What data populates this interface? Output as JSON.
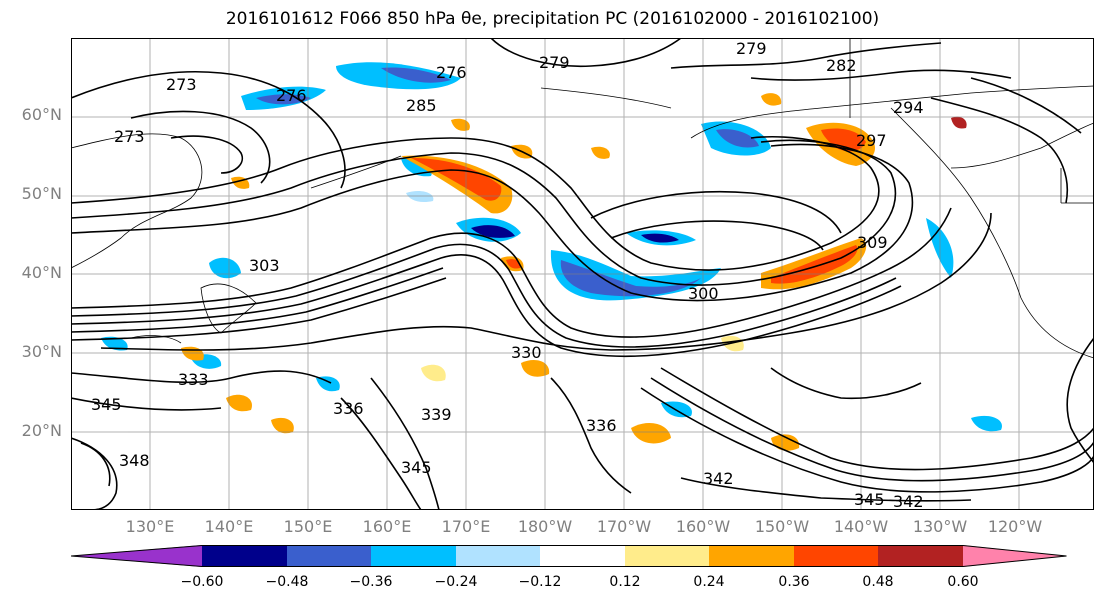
{
  "title": "2016101612 F066 850 hPa θe, precipitation PC (2016102000 - 2016102100)",
  "lat_labels": [
    "60°N",
    "50°N",
    "40°N",
    "30°N",
    "20°N"
  ],
  "lon_labels": [
    "130°E",
    "140°E",
    "150°E",
    "160°E",
    "170°E",
    "180°W",
    "170°W",
    "160°W",
    "150°W",
    "140°W",
    "130°W",
    "120°W"
  ],
  "contour_labels": [
    "273",
    "276",
    "276",
    "279",
    "279",
    "282",
    "285",
    "273",
    "294",
    "297",
    "303",
    "300",
    "309",
    "333",
    "336",
    "339",
    "345",
    "345",
    "348",
    "342",
    "345",
    "342",
    "336",
    "330"
  ],
  "colorbar": {
    "tick_labels": [
      "−0.60",
      "−0.48",
      "−0.36",
      "−0.24",
      "−0.12",
      "0.12",
      "0.24",
      "0.36",
      "0.48",
      "0.60"
    ],
    "colors": [
      "#9932cc",
      "#00008b",
      "#3a5fcd",
      "#00bfff",
      "#b0e2ff",
      "#ffffff",
      "#ffec8b",
      "#ffa500",
      "#ff4500",
      "#b22222",
      "#ff82ab"
    ]
  },
  "colors": {
    "tick_text": "#808080",
    "contour": "#000000",
    "grid": "#808080"
  }
}
